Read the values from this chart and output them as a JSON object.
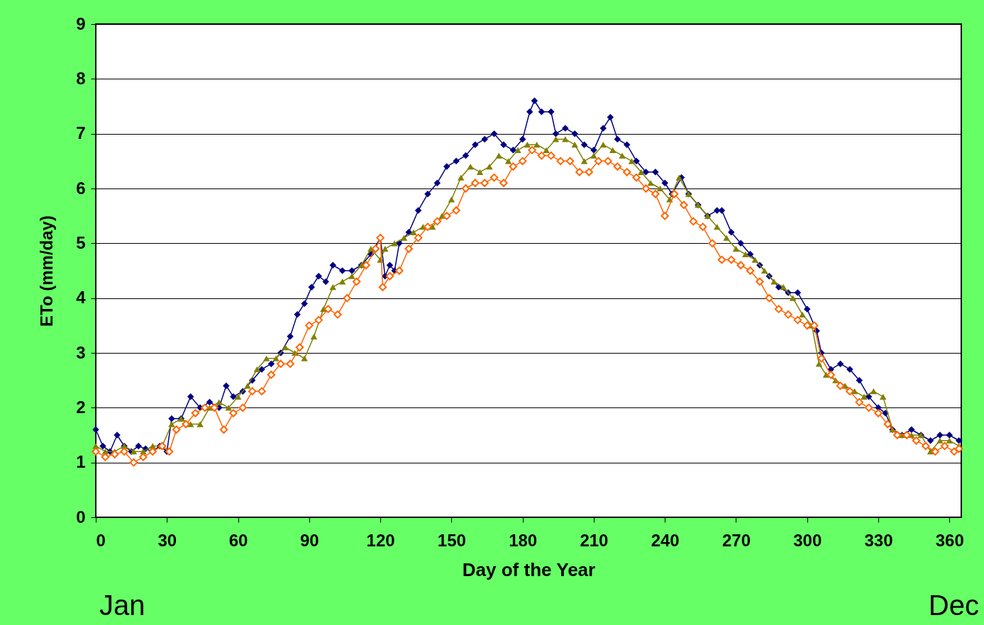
{
  "chart_data": {
    "type": "line",
    "xlabel": "Day of the Year",
    "ylabel": "ETo (mm/day)",
    "xlim": [
      0,
      365
    ],
    "ylim": [
      0,
      9
    ],
    "xticks": [
      0,
      30,
      60,
      90,
      120,
      150,
      180,
      210,
      240,
      270,
      300,
      330,
      360
    ],
    "yticks": [
      0,
      1,
      2,
      3,
      4,
      5,
      6,
      7,
      8,
      9
    ],
    "grid": "y",
    "annotations": [
      "Jan",
      "Dec"
    ],
    "series": [
      {
        "color": "#000080",
        "marker": "diamond",
        "x": [
          0,
          3,
          6,
          9,
          12,
          15,
          18,
          21,
          24,
          27,
          30,
          32,
          36,
          40,
          44,
          48,
          52,
          55,
          58,
          62,
          66,
          70,
          74,
          78,
          82,
          85,
          88,
          91,
          94,
          97,
          100,
          104,
          108,
          112,
          116,
          120,
          122,
          124,
          126,
          128,
          132,
          136,
          140,
          144,
          148,
          152,
          156,
          160,
          164,
          168,
          172,
          176,
          180,
          183,
          185,
          188,
          192,
          194,
          198,
          202,
          206,
          210,
          214,
          217,
          220,
          224,
          228,
          232,
          236,
          240,
          243,
          247,
          250,
          254,
          258,
          262,
          264,
          268,
          272,
          276,
          280,
          284,
          288,
          292,
          296,
          300,
          304,
          306,
          310,
          314,
          318,
          322,
          326,
          330,
          333,
          336,
          340,
          344,
          348,
          352,
          356,
          360,
          364
        ],
        "values": [
          1.6,
          1.3,
          1.2,
          1.5,
          1.3,
          1.2,
          1.3,
          1.25,
          1.2,
          1.3,
          1.2,
          1.8,
          1.8,
          2.2,
          2.0,
          2.1,
          2.0,
          2.4,
          2.2,
          2.3,
          2.5,
          2.7,
          2.8,
          3.0,
          3.3,
          3.7,
          3.9,
          4.2,
          4.4,
          4.3,
          4.6,
          4.5,
          4.5,
          4.6,
          4.8,
          5.1,
          4.4,
          4.6,
          4.5,
          5.0,
          5.2,
          5.6,
          5.9,
          6.1,
          6.4,
          6.5,
          6.6,
          6.8,
          6.9,
          7.0,
          6.8,
          6.7,
          6.9,
          7.4,
          7.6,
          7.4,
          7.4,
          7.0,
          7.1,
          7.0,
          6.8,
          6.7,
          7.1,
          7.3,
          6.9,
          6.8,
          6.5,
          6.3,
          6.3,
          6.1,
          5.9,
          6.2,
          5.9,
          5.7,
          5.5,
          5.6,
          5.6,
          5.2,
          5.0,
          4.8,
          4.6,
          4.4,
          4.2,
          4.1,
          4.1,
          3.8,
          3.4,
          3.0,
          2.7,
          2.8,
          2.7,
          2.5,
          2.2,
          2.0,
          1.9,
          1.6,
          1.5,
          1.6,
          1.5,
          1.4,
          1.5,
          1.5,
          1.4
        ]
      },
      {
        "color": "#808000",
        "marker": "triangle",
        "x": [
          0,
          4,
          8,
          12,
          16,
          20,
          24,
          28,
          32,
          36,
          40,
          44,
          48,
          52,
          56,
          60,
          64,
          68,
          72,
          76,
          80,
          84,
          88,
          92,
          96,
          100,
          104,
          108,
          112,
          116,
          120,
          122,
          126,
          130,
          134,
          138,
          142,
          146,
          150,
          154,
          158,
          162,
          166,
          170,
          174,
          178,
          182,
          186,
          190,
          194,
          198,
          202,
          206,
          210,
          214,
          218,
          222,
          226,
          230,
          234,
          238,
          242,
          246,
          250,
          254,
          258,
          262,
          266,
          270,
          274,
          278,
          282,
          286,
          290,
          294,
          298,
          302,
          305,
          308,
          312,
          316,
          320,
          324,
          328,
          332,
          336,
          340,
          344,
          348,
          352,
          356,
          360,
          364
        ],
        "values": [
          1.3,
          1.2,
          1.2,
          1.3,
          1.2,
          1.2,
          1.3,
          1.3,
          1.7,
          1.8,
          1.7,
          1.7,
          2.0,
          2.1,
          2.0,
          2.2,
          2.4,
          2.7,
          2.9,
          2.9,
          3.1,
          3.0,
          2.9,
          3.3,
          3.8,
          4.2,
          4.3,
          4.4,
          4.6,
          4.9,
          4.7,
          4.9,
          5.0,
          5.1,
          5.2,
          5.3,
          5.3,
          5.5,
          5.8,
          6.2,
          6.4,
          6.3,
          6.4,
          6.6,
          6.5,
          6.7,
          6.8,
          6.8,
          6.7,
          6.9,
          6.9,
          6.8,
          6.5,
          6.6,
          6.8,
          6.7,
          6.6,
          6.5,
          6.3,
          6.1,
          6.0,
          5.8,
          6.2,
          5.9,
          5.7,
          5.5,
          5.3,
          5.1,
          4.9,
          4.8,
          4.7,
          4.5,
          4.3,
          4.2,
          4.0,
          3.7,
          3.5,
          2.8,
          2.6,
          2.5,
          2.4,
          2.3,
          2.2,
          2.3,
          2.2,
          1.6,
          1.5,
          1.5,
          1.5,
          1.2,
          1.4,
          1.4,
          1.3
        ]
      },
      {
        "color": "#ff6600",
        "marker": "diamond",
        "x": [
          0,
          4,
          8,
          12,
          16,
          20,
          24,
          28,
          31,
          34,
          38,
          42,
          46,
          50,
          54,
          58,
          62,
          66,
          70,
          74,
          78,
          82,
          86,
          90,
          94,
          98,
          102,
          106,
          110,
          114,
          118,
          120,
          121,
          124,
          128,
          132,
          136,
          140,
          144,
          148,
          152,
          156,
          160,
          164,
          168,
          172,
          176,
          180,
          184,
          188,
          192,
          196,
          200,
          204,
          208,
          212,
          216,
          220,
          224,
          228,
          232,
          236,
          240,
          244,
          248,
          252,
          256,
          260,
          264,
          268,
          272,
          276,
          280,
          284,
          288,
          292,
          296,
          300,
          303,
          306,
          310,
          314,
          318,
          322,
          326,
          330,
          334,
          338,
          342,
          346,
          350,
          354,
          358,
          362,
          364
        ],
        "values": [
          1.2,
          1.1,
          1.15,
          1.2,
          1.0,
          1.1,
          1.2,
          1.3,
          1.2,
          1.6,
          1.7,
          1.9,
          2.0,
          2.0,
          1.6,
          1.9,
          2.0,
          2.3,
          2.3,
          2.6,
          2.8,
          2.8,
          3.1,
          3.5,
          3.6,
          3.8,
          3.7,
          4.0,
          4.3,
          4.6,
          4.9,
          5.1,
          4.2,
          4.4,
          4.5,
          4.9,
          5.1,
          5.3,
          5.4,
          5.5,
          5.6,
          6.0,
          6.1,
          6.1,
          6.2,
          6.1,
          6.4,
          6.5,
          6.7,
          6.6,
          6.6,
          6.5,
          6.5,
          6.3,
          6.3,
          6.5,
          6.5,
          6.4,
          6.3,
          6.2,
          6.0,
          5.9,
          5.5,
          5.9,
          5.7,
          5.4,
          5.3,
          5.0,
          4.7,
          4.7,
          4.6,
          4.5,
          4.3,
          4.0,
          3.8,
          3.7,
          3.6,
          3.5,
          3.5,
          2.9,
          2.6,
          2.4,
          2.3,
          2.1,
          2.0,
          1.9,
          1.7,
          1.5,
          1.5,
          1.4,
          1.3,
          1.2,
          1.3,
          1.2,
          1.25
        ]
      }
    ]
  }
}
